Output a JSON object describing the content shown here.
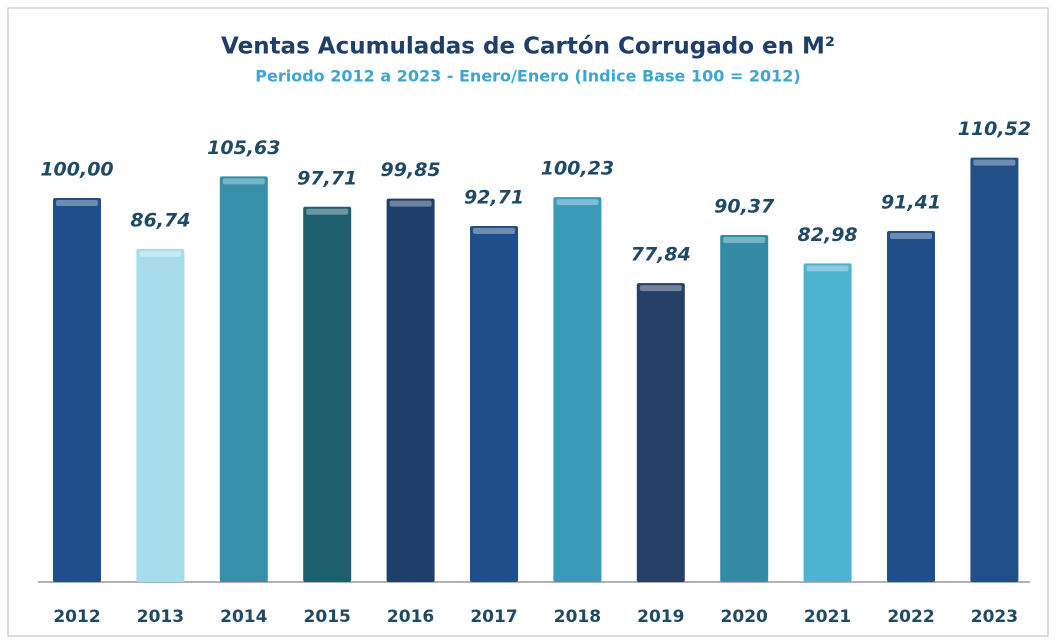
{
  "chart_data": {
    "type": "bar",
    "title": "Ventas Acumuladas de Cartón Corrugado en M²",
    "subtitle": "Periodo 2012 a 2023 - Enero/Enero (Indice Base 100  = 2012)",
    "categories": [
      "2012",
      "2013",
      "2014",
      "2015",
      "2016",
      "2017",
      "2018",
      "2019",
      "2020",
      "2021",
      "2022",
      "2023"
    ],
    "values": [
      100.0,
      86.74,
      105.63,
      97.71,
      99.85,
      92.71,
      100.23,
      77.84,
      90.37,
      82.98,
      91.41,
      110.52
    ],
    "value_labels": [
      "100,00",
      "86,74",
      "105,63",
      "97,71",
      "99,85",
      "92,71",
      "100,23",
      "77,84",
      "90,37",
      "82,98",
      "91,41",
      "110,52"
    ],
    "colors": [
      "#1f4e8a",
      "#a8dcea",
      "#3590a8",
      "#1e5f6e",
      "#1f3f6a",
      "#1f4e8a",
      "#3a9ab8",
      "#253f66",
      "#338aa3",
      "#4db3cf",
      "#1f4e8a",
      "#224f88"
    ]
  }
}
